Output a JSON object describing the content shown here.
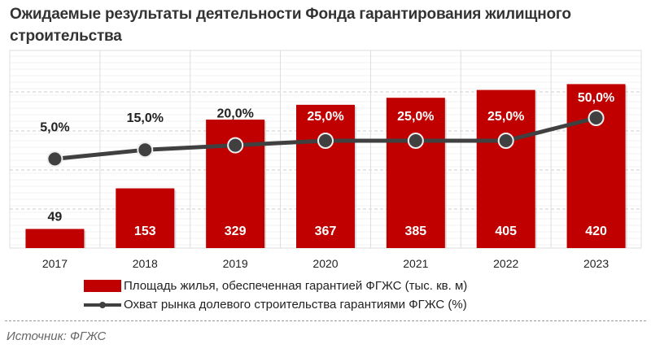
{
  "title": "Ожидаемые результаты деятельности Фонда гарантирования жилищного строительства",
  "chart_data": {
    "type": "bar+line",
    "categories": [
      "2017",
      "2018",
      "2019",
      "2020",
      "2021",
      "2022",
      "2023"
    ],
    "series": [
      {
        "name": "Площадь жилья, обеспеченная гарантией ФГЖС (тыс. кв. м)",
        "type": "bar",
        "values": [
          49,
          153,
          329,
          367,
          385,
          405,
          420
        ],
        "labels": [
          "49",
          "153",
          "329",
          "367",
          "385",
          "405",
          "420"
        ],
        "color": "#c00000"
      },
      {
        "name": "Охват рынка долевого строительства гарантиями ФГЖС (%)",
        "type": "line",
        "values": [
          5,
          15,
          20,
          25,
          25,
          25,
          50
        ],
        "labels": [
          "5,0%",
          "15,0%",
          "20,0%",
          "25,0%",
          "25,0%",
          "25,0%",
          "50,0%"
        ],
        "color": "#404040"
      }
    ],
    "ylim": [
      0,
      500
    ],
    "grid": true,
    "legend_position": "bottom"
  },
  "source": "Источник: ФГЖС"
}
